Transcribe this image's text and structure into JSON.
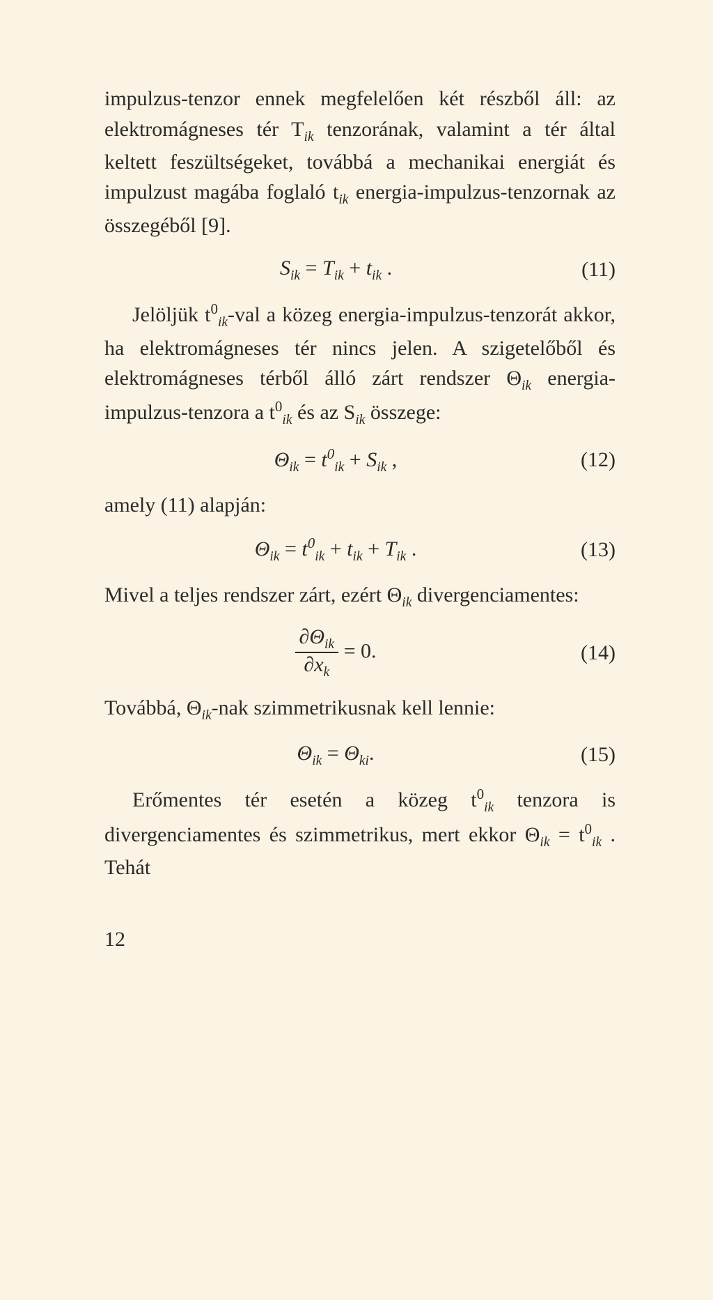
{
  "p1": "impulzus-tenzor ennek megfelelően két részből áll: az elektromágneses tér T",
  "p1_sub1": "ik",
  "p1_b": " tenzorának, valamint a tér által keltett feszültségeket, továbbá a mechanikai energiát és impulzust magába foglaló t",
  "p1_sub2": "ik",
  "p1_c": " energia-impulzus-tenzornak az összegéből [9].",
  "eq11_lhs": "S",
  "eq11_lhs_sub": "ik",
  "eq11_eq": " = ",
  "eq11_r1": "T",
  "eq11_r1_sub": "ik",
  "eq11_plus": " + ",
  "eq11_r2": "t",
  "eq11_r2_sub": "ik",
  "eq11_dot": " .",
  "eq11_num": "(11)",
  "p2_a": "Jelöljük t",
  "p2_sup1": "0",
  "p2_sub1": "ik",
  "p2_b": "-val a közeg energia-impulzus-tenzorát akkor, ha elektromágneses tér nincs jelen. A szigetelőből és elektromágneses térből álló zárt rendszer Θ",
  "p2_sub2": "ik",
  "p2_c": " energia-impulzus-tenzora a t",
  "p2_sup2": "0",
  "p2_sub3": "ik",
  "p2_d": " és az S",
  "p2_sub4": "ik",
  "p2_e": " összege:",
  "eq12_l": "Θ",
  "eq12_l_sub": "ik",
  "eq12_eq": " = ",
  "eq12_r1": "t",
  "eq12_r1_sup": "0",
  "eq12_r1_sub": "ik",
  "eq12_plus": " + ",
  "eq12_r2": "S",
  "eq12_r2_sub": "ik",
  "eq12_comma": " ,",
  "eq12_num": "(12)",
  "p3": "amely (11) alapján:",
  "eq13_l": "Θ",
  "eq13_l_sub": "ik",
  "eq13_eq": " = ",
  "eq13_r1": "t",
  "eq13_r1_sup": "0",
  "eq13_r1_sub": "ik",
  "eq13_plus1": " + ",
  "eq13_r2": "t",
  "eq13_r2_sub": "ik",
  "eq13_plus2": " + ",
  "eq13_r3": "T",
  "eq13_r3_sub": "ik",
  "eq13_dot": " .",
  "eq13_num": "(13)",
  "p4_a": "Mivel a teljes rendszer zárt, ezért Θ",
  "p4_sub": "ik",
  "p4_b": " divergenciamentes:",
  "eq14_num_top_a": "∂Θ",
  "eq14_num_top_sub": "ik",
  "eq14_den_a": "∂x",
  "eq14_den_sub": "k",
  "eq14_rhs": " = 0.",
  "eq14_num": "(14)",
  "p5_a": "Továbbá, Θ",
  "p5_sub": "ik",
  "p5_b": "-nak szimmetrikusnak kell lennie:",
  "eq15_l": "Θ",
  "eq15_l_sub": "ik",
  "eq15_eq": " = ",
  "eq15_r": "Θ",
  "eq15_r_sub": "ki",
  "eq15_dot": ".",
  "eq15_num": "(15)",
  "p6_a": "Erőmentes tér esetén a közeg t",
  "p6_sup": "0",
  "p6_sub": "ik",
  "p6_b": " tenzora is divergenciamentes és szimmetrikus, mert ekkor Θ",
  "p6_sub2": "ik",
  "p6_c": " = t",
  "p6_sup2": "0",
  "p6_sub3": "ik",
  "p6_d": " . Tehát",
  "pagenum": "12"
}
